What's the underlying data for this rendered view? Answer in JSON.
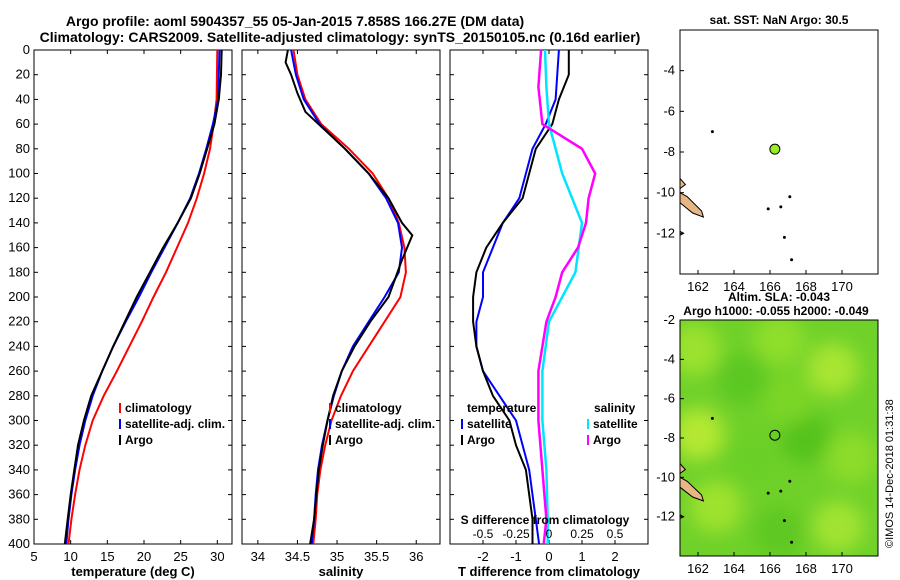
{
  "title_line1": "Argo profile: aoml 5904357_55 05-Jan-2015 7.858S 166.27E (DM data)",
  "title_line2": "Climatology: CARS2009. Satellite-adjusted climatology: synTS_20150105.nc (0.16d earlier)",
  "watermark": "©IMOS 14-Dec-2018 01:31:38",
  "colors": {
    "climatology": "#ff0000",
    "satellite": "#0000ff",
    "argo": "#000000",
    "sat_salinity": "#00e5ff",
    "clim_salinity": "#ff00ff",
    "marker": "#99ee22",
    "land": "#e8b584"
  },
  "chart_data": [
    {
      "type": "line",
      "id": "temp",
      "xlabel": "temperature (deg C)",
      "ylabel": "",
      "xlim": [
        5,
        32
      ],
      "ylim": [
        400,
        0
      ],
      "xticks": [
        5,
        10,
        15,
        20,
        25,
        30
      ],
      "yticks": [
        0,
        20,
        40,
        60,
        80,
        100,
        120,
        140,
        160,
        180,
        200,
        220,
        240,
        260,
        280,
        300,
        320,
        340,
        360,
        380,
        400
      ],
      "legend": [
        "climatology",
        "satellite-adj. clim.",
        "Argo"
      ],
      "series": [
        {
          "name": "climatology",
          "color": "#ff0000",
          "points": [
            [
              30.0,
              0
            ],
            [
              29.9,
              40
            ],
            [
              29.5,
              60
            ],
            [
              29.0,
              80
            ],
            [
              28.2,
              100
            ],
            [
              27.2,
              120
            ],
            [
              26.0,
              140
            ],
            [
              24.5,
              160
            ],
            [
              23.0,
              180
            ],
            [
              21.3,
              200
            ],
            [
              19.7,
              220
            ],
            [
              18.0,
              240
            ],
            [
              16.3,
              260
            ],
            [
              14.5,
              280
            ],
            [
              13.0,
              300
            ],
            [
              12.0,
              320
            ],
            [
              11.2,
              340
            ],
            [
              10.6,
              360
            ],
            [
              10.1,
              380
            ],
            [
              9.7,
              400
            ]
          ]
        },
        {
          "name": "satellite-adj. clim.",
          "color": "#0000ff",
          "points": [
            [
              30.3,
              0
            ],
            [
              30.1,
              40
            ],
            [
              29.4,
              60
            ],
            [
              28.5,
              80
            ],
            [
              27.5,
              100
            ],
            [
              26.3,
              120
            ],
            [
              24.6,
              140
            ],
            [
              22.8,
              160
            ],
            [
              21.0,
              180
            ],
            [
              19.3,
              200
            ],
            [
              17.5,
              220
            ],
            [
              15.8,
              240
            ],
            [
              14.3,
              260
            ],
            [
              13.0,
              280
            ],
            [
              12.0,
              300
            ],
            [
              11.2,
              320
            ],
            [
              10.6,
              340
            ],
            [
              10.1,
              360
            ],
            [
              9.7,
              380
            ],
            [
              9.4,
              400
            ]
          ]
        },
        {
          "name": "Argo",
          "color": "#000000",
          "points": [
            [
              30.6,
              0
            ],
            [
              30.5,
              20
            ],
            [
              30.2,
              40
            ],
            [
              29.6,
              60
            ],
            [
              28.6,
              80
            ],
            [
              27.6,
              100
            ],
            [
              26.4,
              120
            ],
            [
              24.6,
              140
            ],
            [
              22.6,
              160
            ],
            [
              20.8,
              180
            ],
            [
              19.0,
              200
            ],
            [
              17.4,
              220
            ],
            [
              15.8,
              240
            ],
            [
              14.3,
              260
            ],
            [
              12.8,
              280
            ],
            [
              11.8,
              300
            ],
            [
              11.0,
              320
            ],
            [
              10.5,
              340
            ],
            [
              10.0,
              360
            ],
            [
              9.6,
              380
            ],
            [
              9.2,
              400
            ]
          ]
        }
      ]
    },
    {
      "type": "line",
      "id": "sal",
      "xlabel": "salinity",
      "ylabel": "",
      "xlim": [
        33.8,
        36.3
      ],
      "ylim": [
        400,
        0
      ],
      "xticks": [
        34,
        34.5,
        35,
        35.5,
        36
      ],
      "xticklabels": [
        "34",
        "34.5",
        "35",
        "35.5",
        "36"
      ],
      "legend": [
        "climatology",
        "satellite-adj. clim.",
        "Argo"
      ],
      "series": [
        {
          "name": "climatology",
          "color": "#ff0000",
          "points": [
            [
              34.45,
              0
            ],
            [
              34.5,
              20
            ],
            [
              34.6,
              40
            ],
            [
              34.8,
              60
            ],
            [
              35.15,
              80
            ],
            [
              35.45,
              100
            ],
            [
              35.65,
              120
            ],
            [
              35.78,
              140
            ],
            [
              35.85,
              160
            ],
            [
              35.87,
              180
            ],
            [
              35.8,
              200
            ],
            [
              35.6,
              220
            ],
            [
              35.4,
              240
            ],
            [
              35.2,
              260
            ],
            [
              35.05,
              280
            ],
            [
              34.93,
              300
            ],
            [
              34.85,
              320
            ],
            [
              34.79,
              340
            ],
            [
              34.75,
              360
            ],
            [
              34.73,
              380
            ],
            [
              34.7,
              400
            ]
          ]
        },
        {
          "name": "satellite-adj. clim.",
          "color": "#0000ff",
          "points": [
            [
              34.42,
              0
            ],
            [
              34.48,
              20
            ],
            [
              34.58,
              40
            ],
            [
              34.78,
              60
            ],
            [
              35.1,
              80
            ],
            [
              35.4,
              100
            ],
            [
              35.62,
              120
            ],
            [
              35.77,
              140
            ],
            [
              35.82,
              160
            ],
            [
              35.78,
              180
            ],
            [
              35.6,
              200
            ],
            [
              35.4,
              220
            ],
            [
              35.2,
              240
            ],
            [
              35.06,
              260
            ],
            [
              34.96,
              280
            ],
            [
              34.88,
              300
            ],
            [
              34.81,
              320
            ],
            [
              34.76,
              340
            ],
            [
              34.73,
              360
            ],
            [
              34.71,
              380
            ],
            [
              34.68,
              400
            ]
          ]
        },
        {
          "name": "Argo",
          "color": "#000000",
          "points": [
            [
              34.38,
              0
            ],
            [
              34.35,
              10
            ],
            [
              34.42,
              20
            ],
            [
              34.5,
              35
            ],
            [
              34.6,
              50
            ],
            [
              34.85,
              65
            ],
            [
              35.1,
              80
            ],
            [
              35.4,
              100
            ],
            [
              35.65,
              120
            ],
            [
              35.82,
              140
            ],
            [
              35.95,
              150
            ],
            [
              35.82,
              170
            ],
            [
              35.65,
              200
            ],
            [
              35.42,
              220
            ],
            [
              35.22,
              240
            ],
            [
              35.06,
              260
            ],
            [
              34.95,
              280
            ],
            [
              34.88,
              300
            ],
            [
              34.82,
              320
            ],
            [
              34.77,
              340
            ],
            [
              34.74,
              360
            ],
            [
              34.71,
              380
            ],
            [
              34.66,
              400
            ]
          ]
        }
      ]
    },
    {
      "type": "line",
      "id": "diff",
      "xlabel": "T difference from climatology",
      "xlabel_top": "S difference from climatology",
      "xlim": [
        -3,
        3
      ],
      "ylim": [
        400,
        0
      ],
      "xticks": [
        -2,
        -1,
        0,
        1,
        2
      ],
      "xticks_top": [
        -0.5,
        -0.25,
        0,
        0.25,
        0.5
      ],
      "xticklabels_top": [
        "-0.5",
        "-0.25",
        "0",
        "0.25",
        "0.5"
      ],
      "legend_temperature_title": "temperature",
      "legend_salinity_title": "salinity",
      "legend_temperature": [
        "satellite",
        "Argo"
      ],
      "legend_salinity": [
        "satellite",
        "Argo"
      ],
      "series": [
        {
          "name": "T satellite",
          "color": "#0000ff",
          "points": [
            [
              0.3,
              0
            ],
            [
              0.2,
              40
            ],
            [
              -0.1,
              60
            ],
            [
              -0.5,
              80
            ],
            [
              -0.7,
              100
            ],
            [
              -0.9,
              120
            ],
            [
              -1.4,
              140
            ],
            [
              -1.7,
              160
            ],
            [
              -2.0,
              180
            ],
            [
              -2.0,
              200
            ],
            [
              -2.2,
              220
            ],
            [
              -2.2,
              240
            ],
            [
              -2.0,
              260
            ],
            [
              -1.5,
              280
            ],
            [
              -1.0,
              300
            ],
            [
              -0.8,
              320
            ],
            [
              -0.6,
              340
            ],
            [
              -0.5,
              360
            ],
            [
              -0.4,
              380
            ],
            [
              -0.3,
              400
            ]
          ]
        },
        {
          "name": "T Argo",
          "color": "#000000",
          "points": [
            [
              0.6,
              0
            ],
            [
              0.6,
              20
            ],
            [
              0.3,
              40
            ],
            [
              0.1,
              60
            ],
            [
              -0.4,
              80
            ],
            [
              -0.6,
              100
            ],
            [
              -0.8,
              120
            ],
            [
              -1.4,
              140
            ],
            [
              -1.9,
              160
            ],
            [
              -2.2,
              180
            ],
            [
              -2.3,
              200
            ],
            [
              -2.3,
              220
            ],
            [
              -2.2,
              240
            ],
            [
              -2.0,
              260
            ],
            [
              -1.7,
              280
            ],
            [
              -1.2,
              300
            ],
            [
              -1.0,
              320
            ],
            [
              -0.7,
              340
            ],
            [
              -0.6,
              360
            ],
            [
              -0.5,
              380
            ],
            [
              -0.5,
              400
            ]
          ]
        },
        {
          "name": "S satellite",
          "color": "#00e5ff",
          "points": [
            [
              -0.03,
              0
            ],
            [
              -0.02,
              30
            ],
            [
              0.0,
              60
            ],
            [
              0.1,
              100
            ],
            [
              0.25,
              140
            ],
            [
              0.2,
              180
            ],
            [
              0.0,
              220
            ],
            [
              -0.05,
              260
            ],
            [
              -0.05,
              300
            ],
            [
              -0.02,
              340
            ],
            [
              -0.01,
              380
            ],
            [
              -0.01,
              400
            ]
          ]
        },
        {
          "name": "S Argo",
          "color": "#ff00ff",
          "points": [
            [
              -0.06,
              0
            ],
            [
              -0.08,
              30
            ],
            [
              -0.05,
              60
            ],
            [
              0.25,
              80
            ],
            [
              0.35,
              100
            ],
            [
              0.3,
              120
            ],
            [
              0.28,
              140
            ],
            [
              0.22,
              160
            ],
            [
              0.1,
              180
            ],
            [
              0.05,
              200
            ],
            [
              -0.02,
              220
            ],
            [
              -0.08,
              260
            ],
            [
              -0.08,
              300
            ],
            [
              -0.05,
              340
            ],
            [
              -0.02,
              380
            ],
            [
              -0.04,
              400
            ]
          ]
        }
      ]
    },
    {
      "type": "map",
      "id": "sst",
      "title": "sat. SST: NaN Argo: 30.5",
      "xlim": [
        161,
        172
      ],
      "ylim": [
        -14,
        -2
      ],
      "xticks": [
        162,
        164,
        166,
        168,
        170
      ],
      "yticks": [
        -4,
        -6,
        -8,
        -10,
        -12
      ],
      "marker": [
        166.27,
        -7.86
      ]
    },
    {
      "type": "heatmap",
      "id": "sla",
      "title_line1": "Altim. SLA: -0.043",
      "title_line2": "Argo h1000: -0.055 h2000: -0.049",
      "xlim": [
        161,
        172
      ],
      "ylim": [
        -14,
        -2
      ],
      "xticks": [
        162,
        164,
        166,
        168,
        170
      ],
      "yticks": [
        -2,
        -4,
        -6,
        -8,
        -10,
        -12
      ],
      "marker": [
        166.27,
        -7.86
      ]
    }
  ]
}
